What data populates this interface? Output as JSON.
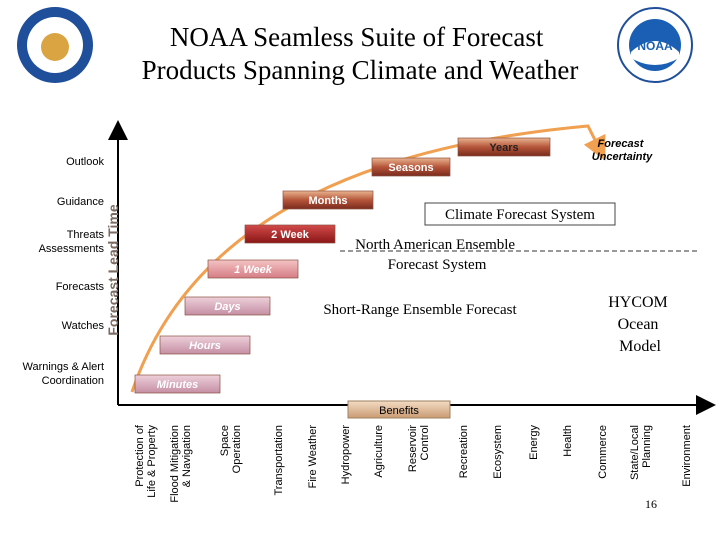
{
  "title": [
    "NOAA Seamless Suite of Forecast",
    "Products Spanning Climate and Weather"
  ],
  "products": [
    [
      "Outlook"
    ],
    [
      "Guidance"
    ],
    [
      "Threats",
      "Assessments"
    ],
    [
      "Forecasts"
    ],
    [
      "Watches"
    ],
    [
      "Warnings & Alert",
      "Coordination"
    ]
  ],
  "axis_label": "Forecast Lead Time",
  "time_scales": [
    "Years",
    "Seasons",
    "Months",
    "2 Week",
    "1 Week",
    "Days",
    "Hours",
    "Minutes"
  ],
  "uncertainty": [
    "Forecast",
    "Uncertainty"
  ],
  "systems": {
    "climate": "Climate Forecast System",
    "naefs": [
      "North American Ensemble",
      "Forecast System"
    ],
    "sref": "Short-Range Ensemble Forecast",
    "hycom": [
      "HYCOM",
      "Ocean",
      "Model"
    ]
  },
  "benefits_label": "Benefits",
  "benefits": [
    [
      "Protection of",
      "Life & Property"
    ],
    [
      "Flood Mitigation",
      "& Navigation"
    ],
    [
      "Space",
      "Operation"
    ],
    [
      "Transportation"
    ],
    [
      "Fire Weather"
    ],
    [
      "Hydropower"
    ],
    [
      "Agriculture"
    ],
    [
      "Reservoir",
      "Control"
    ],
    [
      "Recreation"
    ],
    [
      "Ecosystem"
    ],
    [
      "Energy"
    ],
    [
      "Health"
    ],
    [
      "Commerce"
    ],
    [
      "State/Local",
      "Planning"
    ],
    [
      "Environment"
    ]
  ],
  "page_number": "16"
}
